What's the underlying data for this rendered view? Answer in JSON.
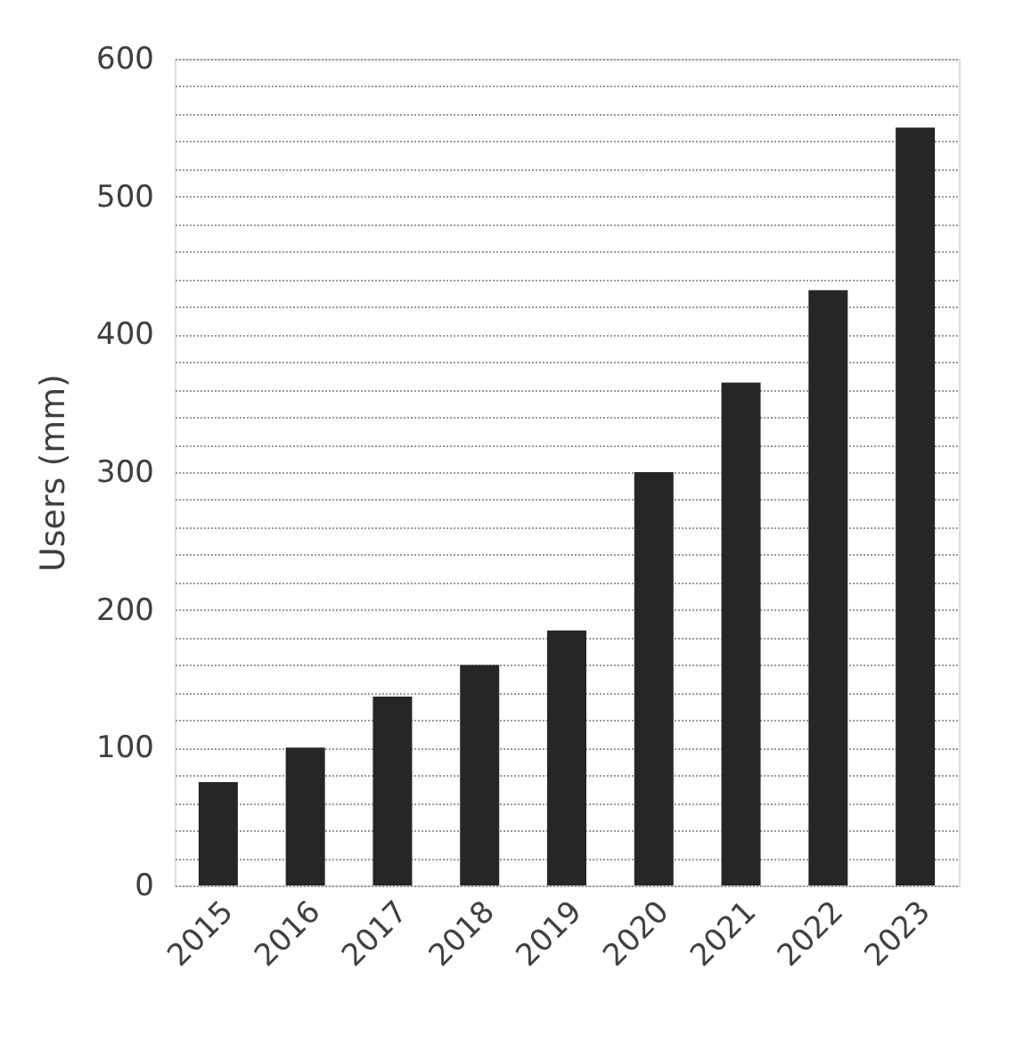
{
  "chart_data": {
    "type": "bar",
    "ylabel": "Users (mm)",
    "categories": [
      "2015",
      "2016",
      "2017",
      "2018",
      "2019",
      "2020",
      "2021",
      "2022",
      "2023"
    ],
    "values": [
      75,
      100,
      137,
      160,
      185,
      300,
      365,
      432,
      550
    ],
    "color": "#262626",
    "ylim": [
      0,
      600
    ],
    "yticks": [
      0,
      {
        "value": 20,
        "label": null
      },
      {
        "value": 40,
        "label": null
      },
      {
        "value": 60,
        "label": null
      },
      {
        "value": 80,
        "label": null
      },
      100,
      {
        "value": 120,
        "label": null
      },
      {
        "value": 140,
        "label": null
      },
      {
        "value": 160,
        "label": null
      },
      {
        "value": 180,
        "label": null
      },
      200,
      {
        "value": 220,
        "label": null
      },
      {
        "value": 240,
        "label": null
      },
      {
        "value": 260,
        "label": null
      },
      {
        "value": 280,
        "label": null
      },
      300,
      {
        "value": 320,
        "label": null
      },
      {
        "value": 340,
        "label": null
      },
      {
        "value": 360,
        "label": null
      },
      {
        "value": 380,
        "label": null
      },
      400,
      {
        "value": 420,
        "label": null
      },
      {
        "value": 440,
        "label": null
      },
      {
        "value": 460,
        "label": null
      },
      {
        "value": 480,
        "label": null
      },
      500,
      {
        "value": 520,
        "label": null
      },
      {
        "value": 540,
        "label": null
      },
      {
        "value": 560,
        "label": null
      },
      {
        "value": 580,
        "label": null
      },
      600
    ],
    "grid": "y"
  }
}
